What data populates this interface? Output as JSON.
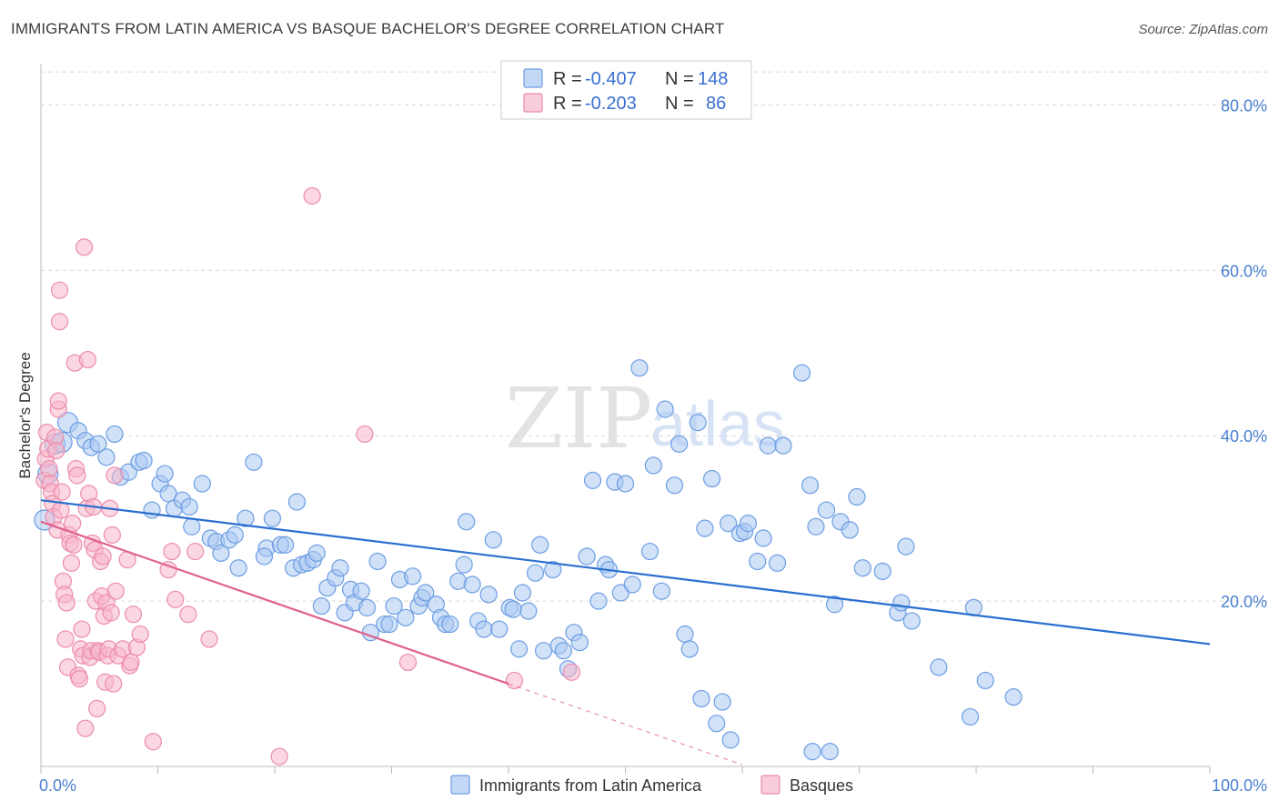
{
  "title": "IMMIGRANTS FROM LATIN AMERICA VS BASQUE BACHELOR'S DEGREE CORRELATION CHART",
  "source": "Source: ZipAtlas.com",
  "watermark": {
    "zip": "ZIP",
    "atlas": "atlas"
  },
  "colors": {
    "blue_fill": "#a9c8f2",
    "blue_stroke": "#6d9ee3",
    "blue_line": "#2a6fd0",
    "pink_fill": "#f7b6cb",
    "pink_stroke": "#ec8cab",
    "pink_line": "#e0628e",
    "grid": "#d8d8d8",
    "axis_text": "#4a7fd0"
  },
  "legend": {
    "r_label": "R =",
    "n_label": "N =",
    "rows": [
      {
        "r": "-0.407",
        "n": "148"
      },
      {
        "r": "-0.203",
        "n": "86"
      }
    ]
  },
  "chart_data": {
    "type": "scatter",
    "title": "IMMIGRANTS FROM LATIN AMERICA VS BASQUE BACHELOR'S DEGREE CORRELATION CHART",
    "xlabel": "",
    "ylabel": "Bachelor's Degree",
    "xlim": [
      0,
      100
    ],
    "ylim": [
      0,
      85
    ],
    "x_tick_labels": [
      "0.0%",
      "100.0%"
    ],
    "y_ticks": [
      20,
      40,
      60,
      80
    ],
    "y_tick_labels": [
      "20.0%",
      "40.0%",
      "60.0%",
      "80.0%"
    ],
    "grid": "horizontal dashed",
    "legend_position": "top-center",
    "series": [
      {
        "name": "Immigrants from Latin America",
        "trend": {
          "x0": 0,
          "y0": 32.2,
          "x1": 100,
          "y1": 14.8
        },
        "points": [
          [
            0.3,
            29.8
          ],
          [
            0.6,
            35.4
          ],
          [
            1.2,
            39.0
          ],
          [
            1.8,
            39.2
          ],
          [
            2.3,
            41.6
          ],
          [
            3.2,
            40.6
          ],
          [
            3.8,
            39.4
          ],
          [
            4.3,
            38.6
          ],
          [
            4.9,
            39.0
          ],
          [
            5.6,
            37.4
          ],
          [
            6.3,
            40.2
          ],
          [
            6.8,
            35.0
          ],
          [
            7.5,
            35.6
          ],
          [
            8.4,
            36.8
          ],
          [
            8.8,
            37.0
          ],
          [
            9.5,
            31.0
          ],
          [
            10.2,
            34.2
          ],
          [
            10.6,
            35.4
          ],
          [
            10.9,
            33.0
          ],
          [
            11.4,
            31.2
          ],
          [
            12.1,
            32.2
          ],
          [
            12.7,
            31.4
          ],
          [
            12.9,
            29.0
          ],
          [
            13.8,
            34.2
          ],
          [
            14.5,
            27.6
          ],
          [
            15.0,
            27.2
          ],
          [
            15.4,
            25.8
          ],
          [
            16.1,
            27.4
          ],
          [
            16.6,
            28.0
          ],
          [
            16.9,
            24.0
          ],
          [
            17.5,
            30.0
          ],
          [
            18.2,
            36.8
          ],
          [
            19.3,
            26.4
          ],
          [
            19.1,
            25.4
          ],
          [
            19.8,
            30.0
          ],
          [
            20.5,
            26.8
          ],
          [
            20.9,
            26.8
          ],
          [
            21.6,
            24.0
          ],
          [
            21.9,
            32.0
          ],
          [
            22.3,
            24.4
          ],
          [
            22.8,
            24.6
          ],
          [
            23.3,
            25.0
          ],
          [
            23.6,
            25.8
          ],
          [
            24.0,
            19.4
          ],
          [
            24.5,
            21.6
          ],
          [
            25.2,
            22.8
          ],
          [
            25.6,
            24.0
          ],
          [
            26.0,
            18.6
          ],
          [
            26.5,
            21.4
          ],
          [
            26.8,
            19.8
          ],
          [
            27.4,
            21.2
          ],
          [
            27.9,
            19.2
          ],
          [
            28.2,
            16.2
          ],
          [
            28.8,
            24.8
          ],
          [
            29.4,
            17.2
          ],
          [
            29.8,
            17.2
          ],
          [
            30.2,
            19.4
          ],
          [
            30.7,
            22.6
          ],
          [
            31.2,
            18.0
          ],
          [
            31.8,
            23.0
          ],
          [
            32.3,
            19.4
          ],
          [
            32.6,
            20.4
          ],
          [
            32.9,
            21.0
          ],
          [
            33.8,
            19.6
          ],
          [
            34.2,
            18.0
          ],
          [
            34.6,
            17.2
          ],
          [
            35.0,
            17.2
          ],
          [
            35.7,
            22.4
          ],
          [
            36.2,
            24.4
          ],
          [
            36.4,
            29.6
          ],
          [
            36.9,
            22.0
          ],
          [
            37.4,
            17.6
          ],
          [
            37.9,
            16.6
          ],
          [
            38.3,
            20.8
          ],
          [
            38.7,
            27.4
          ],
          [
            39.2,
            16.6
          ],
          [
            40.1,
            19.2
          ],
          [
            40.4,
            19.0
          ],
          [
            40.9,
            14.2
          ],
          [
            41.2,
            21.0
          ],
          [
            41.7,
            18.8
          ],
          [
            42.3,
            23.4
          ],
          [
            42.7,
            26.8
          ],
          [
            43.0,
            14.0
          ],
          [
            43.8,
            23.8
          ],
          [
            44.3,
            14.6
          ],
          [
            44.7,
            14.0
          ],
          [
            45.1,
            11.8
          ],
          [
            45.6,
            16.2
          ],
          [
            46.1,
            15.0
          ],
          [
            46.7,
            25.4
          ],
          [
            47.2,
            34.6
          ],
          [
            47.7,
            20.0
          ],
          [
            48.3,
            24.4
          ],
          [
            48.6,
            23.8
          ],
          [
            49.1,
            34.4
          ],
          [
            49.6,
            21.0
          ],
          [
            50.0,
            34.2
          ],
          [
            50.6,
            22.0
          ],
          [
            51.2,
            48.2
          ],
          [
            52.1,
            26.0
          ],
          [
            52.4,
            36.4
          ],
          [
            53.1,
            21.2
          ],
          [
            53.4,
            43.2
          ],
          [
            54.2,
            34.0
          ],
          [
            54.6,
            39.0
          ],
          [
            55.1,
            16.0
          ],
          [
            55.5,
            14.2
          ],
          [
            56.2,
            41.6
          ],
          [
            56.5,
            8.2
          ],
          [
            56.8,
            28.8
          ],
          [
            57.4,
            34.8
          ],
          [
            57.8,
            5.2
          ],
          [
            58.3,
            7.8
          ],
          [
            58.8,
            29.4
          ],
          [
            59.0,
            3.2
          ],
          [
            59.8,
            28.2
          ],
          [
            60.2,
            28.4
          ],
          [
            60.5,
            29.4
          ],
          [
            61.3,
            24.8
          ],
          [
            61.8,
            27.6
          ],
          [
            62.2,
            38.8
          ],
          [
            63.0,
            24.6
          ],
          [
            63.5,
            38.8
          ],
          [
            65.1,
            47.6
          ],
          [
            65.8,
            34.0
          ],
          [
            66.0,
            1.8
          ],
          [
            66.3,
            29.0
          ],
          [
            67.2,
            31.0
          ],
          [
            67.5,
            1.8
          ],
          [
            67.9,
            19.6
          ],
          [
            68.4,
            29.6
          ],
          [
            69.2,
            28.6
          ],
          [
            69.8,
            32.6
          ],
          [
            70.3,
            24.0
          ],
          [
            72.0,
            23.6
          ],
          [
            73.3,
            18.6
          ],
          [
            73.6,
            19.8
          ],
          [
            74.0,
            26.6
          ],
          [
            74.5,
            17.6
          ],
          [
            76.8,
            12.0
          ],
          [
            79.5,
            6.0
          ],
          [
            79.8,
            19.2
          ],
          [
            80.8,
            10.4
          ],
          [
            83.2,
            8.4
          ]
        ]
      },
      {
        "name": "Basques",
        "trend": {
          "x0": 0,
          "y0": 29.6,
          "x1": 40,
          "y1": 10.0
        },
        "trend_dashed": {
          "x0": 40,
          "y0": 10.0,
          "x1": 60,
          "y1": 0.2
        },
        "points": [
          [
            0.3,
            34.6
          ],
          [
            0.4,
            37.2
          ],
          [
            0.5,
            40.4
          ],
          [
            0.6,
            38.4
          ],
          [
            0.7,
            36.0
          ],
          [
            0.8,
            34.2
          ],
          [
            0.9,
            33.2
          ],
          [
            1.0,
            31.8
          ],
          [
            1.1,
            30.2
          ],
          [
            1.2,
            39.8
          ],
          [
            1.3,
            38.2
          ],
          [
            1.4,
            28.6
          ],
          [
            1.5,
            43.2
          ],
          [
            1.5,
            44.2
          ],
          [
            1.6,
            57.6
          ],
          [
            1.6,
            53.8
          ],
          [
            1.7,
            31.0
          ],
          [
            1.8,
            33.2
          ],
          [
            1.9,
            22.4
          ],
          [
            2.0,
            20.8
          ],
          [
            2.1,
            15.4
          ],
          [
            2.2,
            19.8
          ],
          [
            2.3,
            12.0
          ],
          [
            2.4,
            28.0
          ],
          [
            2.5,
            27.0
          ],
          [
            2.6,
            24.6
          ],
          [
            2.7,
            29.4
          ],
          [
            2.8,
            26.8
          ],
          [
            2.9,
            48.8
          ],
          [
            3.0,
            36.0
          ],
          [
            3.1,
            35.2
          ],
          [
            3.2,
            11.0
          ],
          [
            3.3,
            10.6
          ],
          [
            3.4,
            14.2
          ],
          [
            3.5,
            16.6
          ],
          [
            3.6,
            13.4
          ],
          [
            3.7,
            62.8
          ],
          [
            3.8,
            4.6
          ],
          [
            3.9,
            31.2
          ],
          [
            4.0,
            49.2
          ],
          [
            4.1,
            33.0
          ],
          [
            4.2,
            13.2
          ],
          [
            4.3,
            14.0
          ],
          [
            4.4,
            27.0
          ],
          [
            4.5,
            31.4
          ],
          [
            4.6,
            26.2
          ],
          [
            4.7,
            20.0
          ],
          [
            4.8,
            7.0
          ],
          [
            4.9,
            14.0
          ],
          [
            5.0,
            13.8
          ],
          [
            5.1,
            24.8
          ],
          [
            5.2,
            20.6
          ],
          [
            5.3,
            25.4
          ],
          [
            5.4,
            18.2
          ],
          [
            5.5,
            10.2
          ],
          [
            5.6,
            19.8
          ],
          [
            5.7,
            13.4
          ],
          [
            5.8,
            14.2
          ],
          [
            5.9,
            31.2
          ],
          [
            6.0,
            18.6
          ],
          [
            6.1,
            28.0
          ],
          [
            6.2,
            10.0
          ],
          [
            6.3,
            35.2
          ],
          [
            6.4,
            21.2
          ],
          [
            6.6,
            13.4
          ],
          [
            7.0,
            14.2
          ],
          [
            7.4,
            25.0
          ],
          [
            7.6,
            12.2
          ],
          [
            7.7,
            12.6
          ],
          [
            7.9,
            18.4
          ],
          [
            8.2,
            14.4
          ],
          [
            8.5,
            16.0
          ],
          [
            9.6,
            3.0
          ],
          [
            10.9,
            23.8
          ],
          [
            11.2,
            26.0
          ],
          [
            11.5,
            20.2
          ],
          [
            12.6,
            18.4
          ],
          [
            13.2,
            26.0
          ],
          [
            14.4,
            15.4
          ],
          [
            20.4,
            1.2
          ],
          [
            23.2,
            69.0
          ],
          [
            27.7,
            40.2
          ],
          [
            31.4,
            12.6
          ],
          [
            40.5,
            10.4
          ],
          [
            45.4,
            11.4
          ]
        ]
      }
    ]
  },
  "bottom_legend": [
    {
      "label": "Immigrants from Latin America"
    },
    {
      "label": "Basques"
    }
  ]
}
